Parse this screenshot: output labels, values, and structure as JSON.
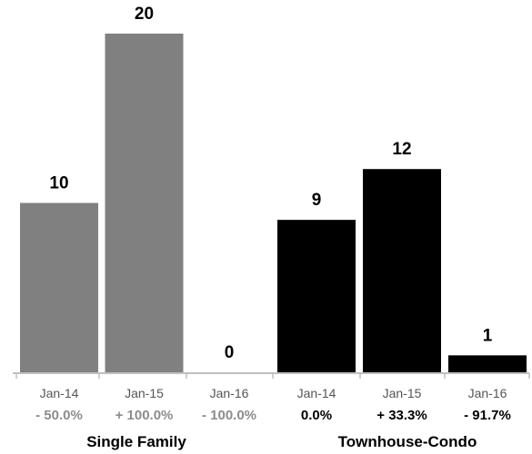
{
  "chart_data": {
    "type": "bar",
    "groups": [
      {
        "name": "Single Family",
        "color": "#808080",
        "pct_color": "#8c8c8c",
        "categories": [
          "Jan-14",
          "Jan-15",
          "Jan-16"
        ],
        "values": [
          10,
          20,
          0
        ],
        "changes": [
          "- 50.0%",
          "+ 100.0%",
          "- 100.0%"
        ]
      },
      {
        "name": "Townhouse-Condo",
        "color": "#000000",
        "pct_color": "#000000",
        "categories": [
          "Jan-14",
          "Jan-15",
          "Jan-16"
        ],
        "values": [
          9,
          12,
          1
        ],
        "changes": [
          "0.0%",
          "+ 33.3%",
          "- 91.7%"
        ]
      }
    ],
    "ylim": [
      0,
      20
    ],
    "axis_color": "#bfbfbf",
    "grid": false,
    "legend": "none"
  }
}
